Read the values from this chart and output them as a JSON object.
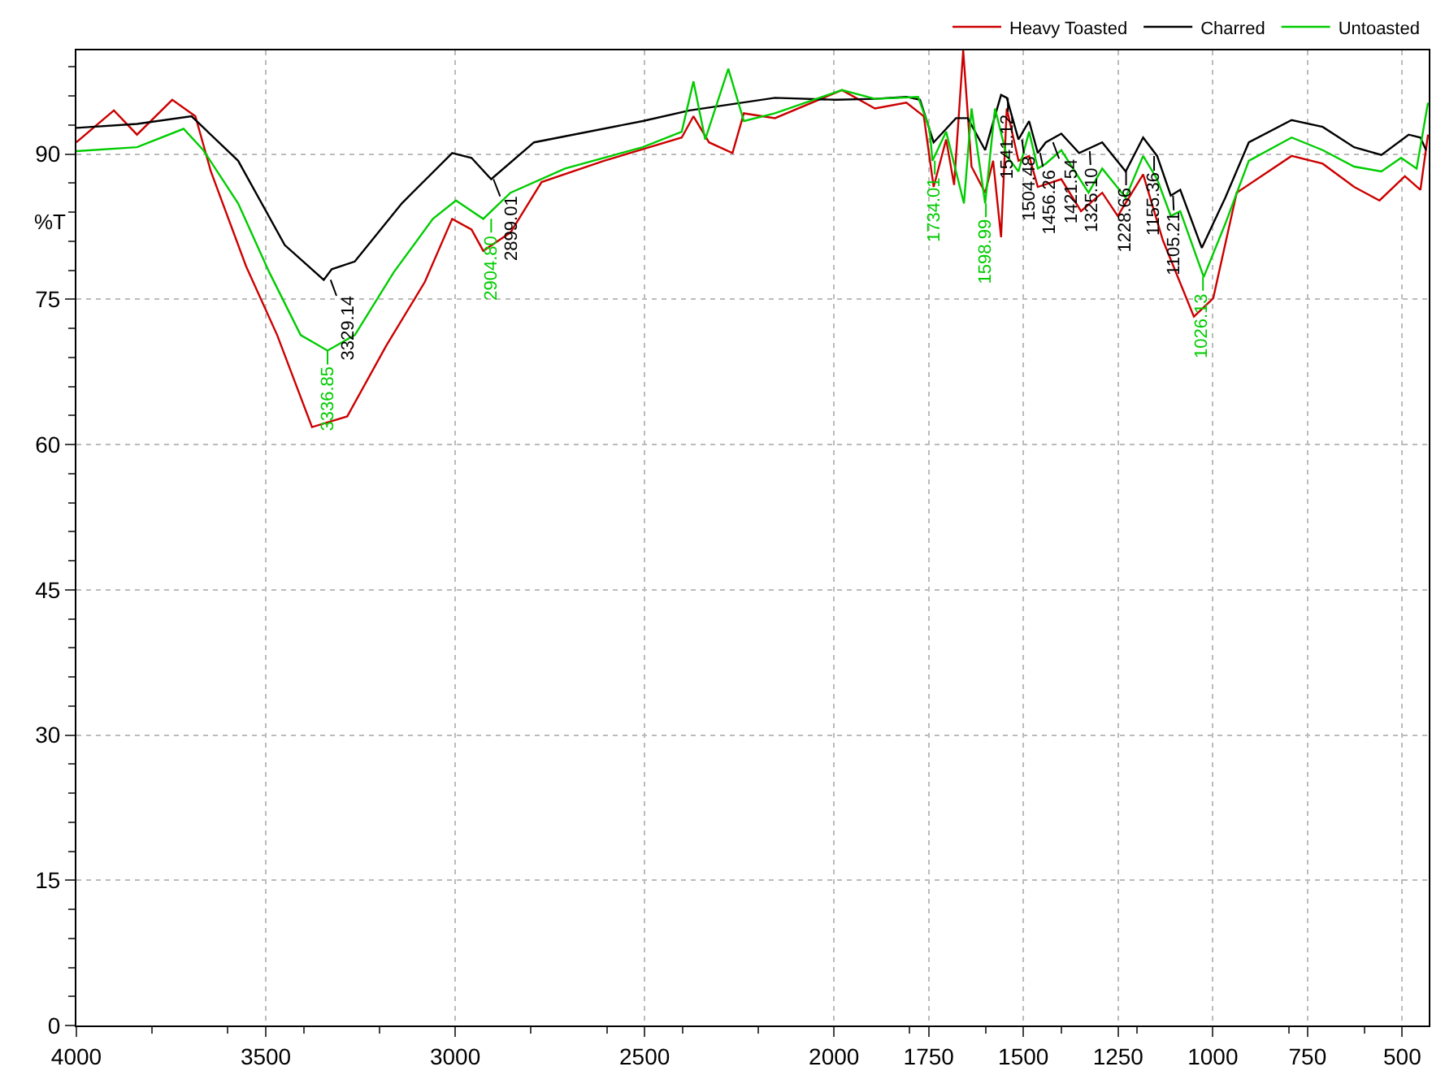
{
  "chart_data": {
    "type": "line",
    "ylabel": "%T",
    "xlim": [
      4000,
      430
    ],
    "xticks": [
      4000,
      3500,
      3000,
      2500,
      2000,
      1750,
      1500,
      1250,
      1000,
      750,
      500
    ],
    "ylim": [
      0,
      100.7
    ],
    "yticks": [
      0,
      15,
      30,
      45,
      60,
      75,
      90
    ],
    "grid": true,
    "legend": "top right",
    "marker": "none",
    "line_style": "solid",
    "series": [
      {
        "name": "Heavy Toasted",
        "color": "#cc0000",
        "x": [
          4000,
          3901,
          3840,
          3747,
          3686,
          3645,
          3552,
          3470,
          3378,
          3285,
          3182,
          3080,
          3008,
          2957,
          2926,
          2854,
          2772,
          2607,
          2402,
          2371,
          2330,
          2268,
          2238,
          2156,
          1979,
          1892,
          1809,
          1763,
          1737,
          1704,
          1683,
          1659,
          1637,
          1601,
          1580,
          1559,
          1544,
          1513,
          1485,
          1462,
          1400,
          1348,
          1292,
          1251,
          1184,
          1132,
          1050,
          999,
          937,
          792,
          710,
          627,
          560,
          493,
          452,
          432
        ],
        "values": [
          91.2,
          94.5,
          92.0,
          95.6,
          93.9,
          88.2,
          78.4,
          71.3,
          61.8,
          62.9,
          70.2,
          76.8,
          83.3,
          82.2,
          80.0,
          81.9,
          87.1,
          89.3,
          91.7,
          93.9,
          91.2,
          90.1,
          94.2,
          93.7,
          96.6,
          94.7,
          95.3,
          93.9,
          86.6,
          91.5,
          86.8,
          100.7,
          88.7,
          86.0,
          89.3,
          81.4,
          94.7,
          89.3,
          89.8,
          86.6,
          87.4,
          84.1,
          86.0,
          83.6,
          87.9,
          81.1,
          73.2,
          75.1,
          86.0,
          89.8,
          89.0,
          86.6,
          85.2,
          87.7,
          86.3,
          92.0
        ]
      },
      {
        "name": "Charred",
        "color": "#000000",
        "x": [
          4000,
          3840,
          3696,
          3573,
          3450,
          3347,
          3326,
          3265,
          3141,
          3008,
          2957,
          2905,
          2792,
          2505,
          2381,
          2156,
          1995,
          1892,
          1809,
          1773,
          1737,
          1678,
          1647,
          1601,
          1559,
          1544,
          1513,
          1485,
          1462,
          1441,
          1400,
          1353,
          1292,
          1230,
          1184,
          1147,
          1111,
          1086,
          1029,
          967,
          905,
          792,
          710,
          627,
          555,
          483,
          452,
          437
        ],
        "values": [
          92.7,
          93.1,
          93.9,
          89.3,
          80.6,
          77.0,
          78.1,
          78.9,
          84.9,
          90.1,
          89.6,
          87.4,
          91.2,
          93.4,
          94.5,
          95.8,
          95.6,
          95.7,
          95.9,
          95.6,
          91.2,
          93.7,
          93.7,
          90.4,
          96.1,
          95.8,
          91.5,
          93.4,
          90.1,
          91.2,
          92.1,
          90.1,
          91.2,
          88.2,
          91.7,
          89.8,
          85.7,
          86.3,
          80.3,
          85.5,
          91.2,
          93.5,
          92.8,
          90.7,
          89.9,
          92.0,
          91.7,
          90.4
        ]
      },
      {
        "name": "Untoasted",
        "color": "#00cc00",
        "x": [
          4000,
          3840,
          3717,
          3665,
          3573,
          3491,
          3408,
          3337,
          3265,
          3162,
          3059,
          2998,
          2926,
          2854,
          2710,
          2505,
          2402,
          2371,
          2340,
          2279,
          2238,
          2156,
          1979,
          1892,
          1778,
          1748,
          1740,
          1704,
          1657,
          1637,
          1601,
          1575,
          1544,
          1513,
          1485,
          1462,
          1441,
          1400,
          1328,
          1292,
          1230,
          1184,
          1147,
          1111,
          1086,
          1024,
          967,
          905,
          792,
          710,
          627,
          555,
          503,
          462,
          432
        ],
        "values": [
          90.3,
          90.7,
          92.6,
          90.4,
          84.9,
          77.8,
          71.3,
          69.7,
          71.3,
          77.8,
          83.3,
          85.2,
          83.3,
          86.0,
          88.5,
          90.7,
          92.3,
          97.5,
          91.5,
          98.8,
          93.4,
          94.2,
          96.6,
          95.7,
          95.9,
          92.6,
          89.3,
          92.3,
          84.9,
          94.7,
          84.9,
          94.7,
          89.8,
          88.2,
          92.3,
          88.5,
          89.0,
          90.4,
          86.0,
          88.5,
          85.5,
          89.8,
          87.4,
          83.6,
          84.1,
          77.3,
          82.8,
          89.3,
          91.7,
          90.4,
          88.7,
          88.2,
          89.6,
          88.5,
          95.3
        ]
      }
    ],
    "annotations": [
      {
        "text": "3329.14",
        "x": 3329,
        "y": 77.0
      },
      {
        "text": "3336.85",
        "x": 3337,
        "y": 69.7
      },
      {
        "text": "2899.01",
        "x": 2899,
        "y": 87.4
      },
      {
        "text": "2904.80",
        "x": 2905,
        "y": 83.3
      },
      {
        "text": "1734.01",
        "x": 1734,
        "y": 89.3
      },
      {
        "text": "1598.99",
        "x": 1599,
        "y": 84.9
      },
      {
        "text": "1541.12",
        "x": 1541,
        "y": 95.8
      },
      {
        "text": "1504.48",
        "x": 1504,
        "y": 91.5
      },
      {
        "text": "1456.26",
        "x": 1456,
        "y": 90.1
      },
      {
        "text": "1421.54",
        "x": 1422,
        "y": 91.2
      },
      {
        "text": "1325.10",
        "x": 1325,
        "y": 90.3
      },
      {
        "text": "1228.66",
        "x": 1229,
        "y": 88.2
      },
      {
        "text": "1155.36",
        "x": 1155,
        "y": 89.8
      },
      {
        "text": "1105.21",
        "x": 1105,
        "y": 85.7
      },
      {
        "text": "1026.13",
        "x": 1026,
        "y": 77.3
      }
    ]
  }
}
